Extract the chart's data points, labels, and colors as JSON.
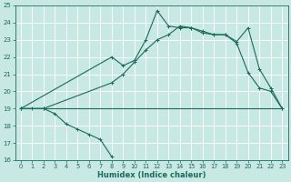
{
  "xlabel": "Humidex (Indice chaleur)",
  "ylabel": "",
  "xlim": [
    -0.5,
    23.5
  ],
  "ylim": [
    16,
    25
  ],
  "xticks": [
    0,
    1,
    2,
    3,
    4,
    5,
    6,
    7,
    8,
    9,
    10,
    11,
    12,
    13,
    14,
    15,
    16,
    17,
    18,
    19,
    20,
    21,
    22,
    23
  ],
  "yticks": [
    16,
    17,
    18,
    19,
    20,
    21,
    22,
    23,
    24,
    25
  ],
  "bg_color": "#c8e8e4",
  "line_color": "#1a6b5a",
  "grid_color": "#b8d8d4",
  "series": [
    {
      "x": [
        0,
        1,
        2,
        3,
        4,
        5,
        6,
        7,
        8
      ],
      "y": [
        19,
        19,
        19,
        18.7,
        18.1,
        17.8,
        17.5,
        17.2,
        16.2
      ],
      "marker": true
    },
    {
      "x": [
        0,
        2,
        8,
        19,
        23
      ],
      "y": [
        19,
        19,
        19,
        19,
        19
      ],
      "marker": false
    },
    {
      "x": [
        0,
        2,
        8,
        9,
        10,
        11,
        12,
        13,
        14,
        15,
        16,
        17,
        18,
        19,
        20,
        21,
        22,
        23
      ],
      "y": [
        19,
        19,
        20.5,
        21.0,
        21.7,
        22.4,
        23.0,
        23.3,
        23.8,
        23.7,
        23.4,
        23.3,
        23.3,
        22.8,
        21.1,
        20.2,
        20.0,
        19.0
      ],
      "marker": true
    },
    {
      "x": [
        0,
        8,
        9,
        10,
        11,
        12,
        13,
        14,
        15,
        16,
        17,
        18,
        19,
        20,
        21,
        22,
        23
      ],
      "y": [
        19,
        22.0,
        21.5,
        21.8,
        23.0,
        24.7,
        23.8,
        23.7,
        23.7,
        23.5,
        23.3,
        23.3,
        22.9,
        23.7,
        21.3,
        20.2,
        19.0
      ],
      "marker": true
    }
  ]
}
